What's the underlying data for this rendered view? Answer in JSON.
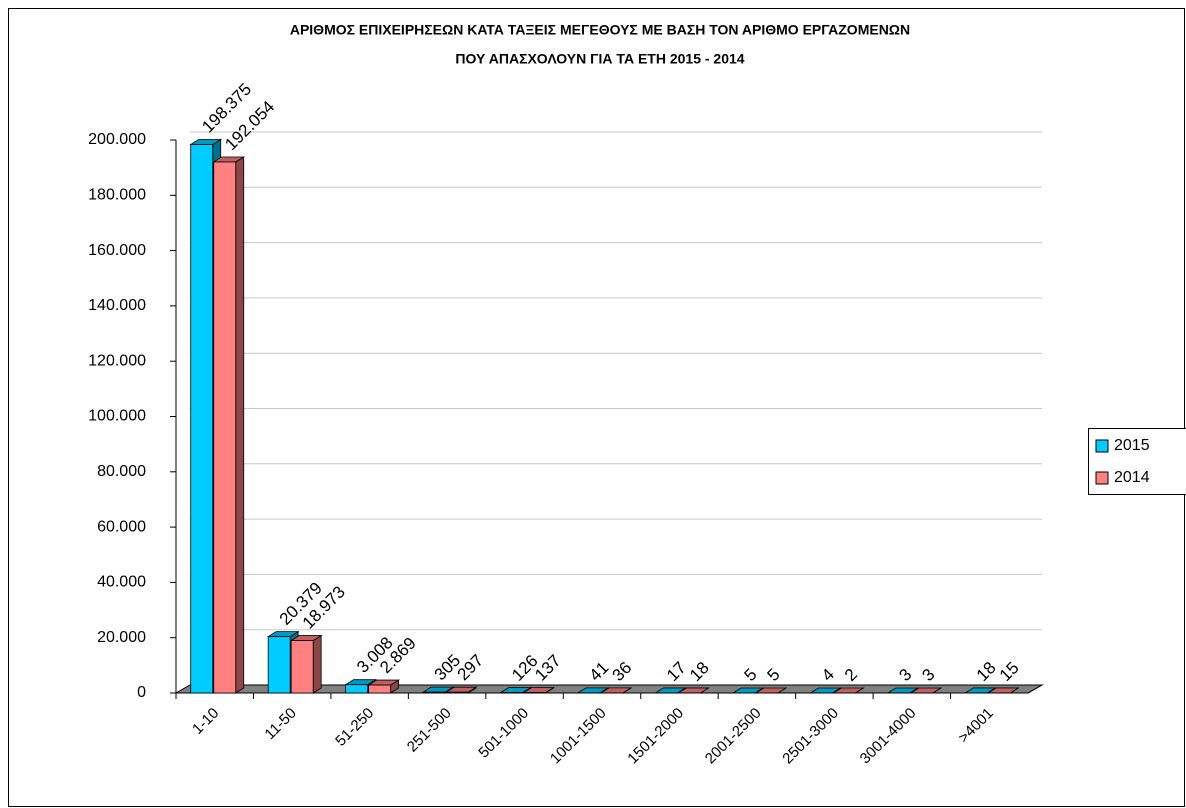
{
  "chart_data": {
    "type": "bar",
    "title": [
      "ΑΡΙΘΜΟΣ ΕΠΙΧΕΙΡΗΣΕΩΝ ΚΑΤΑ ΤΑΞΕΙΣ ΜΕΓΕΘΟΥΣ ΜΕ ΒΑΣΗ ΤΟΝ ΑΡΙΘΜΟ ΕΡΓΑΖΟΜΕΝΩΝ",
      "ΠΟΥ ΑΠΑΣΧΟΛΟΥΝ ΓΙΑ ΤΑ ΕΤΗ 2015 - 2014"
    ],
    "categories": [
      "1-10",
      "11-50",
      "51-250",
      "251-500",
      "501-1000",
      "1001-1500",
      "1501-2000",
      "2001-2500",
      "2501-3000",
      "3001-4000",
      ">4001"
    ],
    "series": [
      {
        "name": "2015",
        "color": "#00ccff",
        "label_color": "#3d6fdc",
        "values": [
          198375,
          20379,
          3008,
          305,
          126,
          41,
          17,
          5,
          4,
          3,
          18
        ],
        "value_labels": [
          "198.375",
          "20.379",
          "3.008",
          "305",
          "126",
          "41",
          "17",
          "5",
          "4",
          "3",
          "18"
        ]
      },
      {
        "name": "2014",
        "color": "#ff8080",
        "label_color": "#f07a1e",
        "values": [
          192054,
          18973,
          2869,
          297,
          137,
          36,
          18,
          5,
          2,
          3,
          15
        ],
        "value_labels": [
          "192.054",
          "18.973",
          "2.869",
          "297",
          "137",
          "36",
          "18",
          "5",
          "2",
          "3",
          "15"
        ]
      }
    ],
    "ylim": [
      0,
      200000
    ],
    "yticks": [
      0,
      {
        "value": 20000,
        "label": "20.000"
      },
      {
        "value": 40000,
        "label": "40.000"
      },
      {
        "value": 60000,
        "label": "60.000"
      },
      {
        "value": 80000,
        "label": "80.000"
      },
      {
        "value": 100000,
        "label": "100.000"
      },
      {
        "value": 120000,
        "label": "120.000"
      },
      {
        "value": 140000,
        "label": "140.000"
      },
      {
        "value": 160000,
        "label": "160.000"
      },
      {
        "value": 180000,
        "label": "180.000"
      },
      {
        "value": 200000,
        "label": "200.000"
      }
    ],
    "grid": true,
    "legend": "right"
  }
}
